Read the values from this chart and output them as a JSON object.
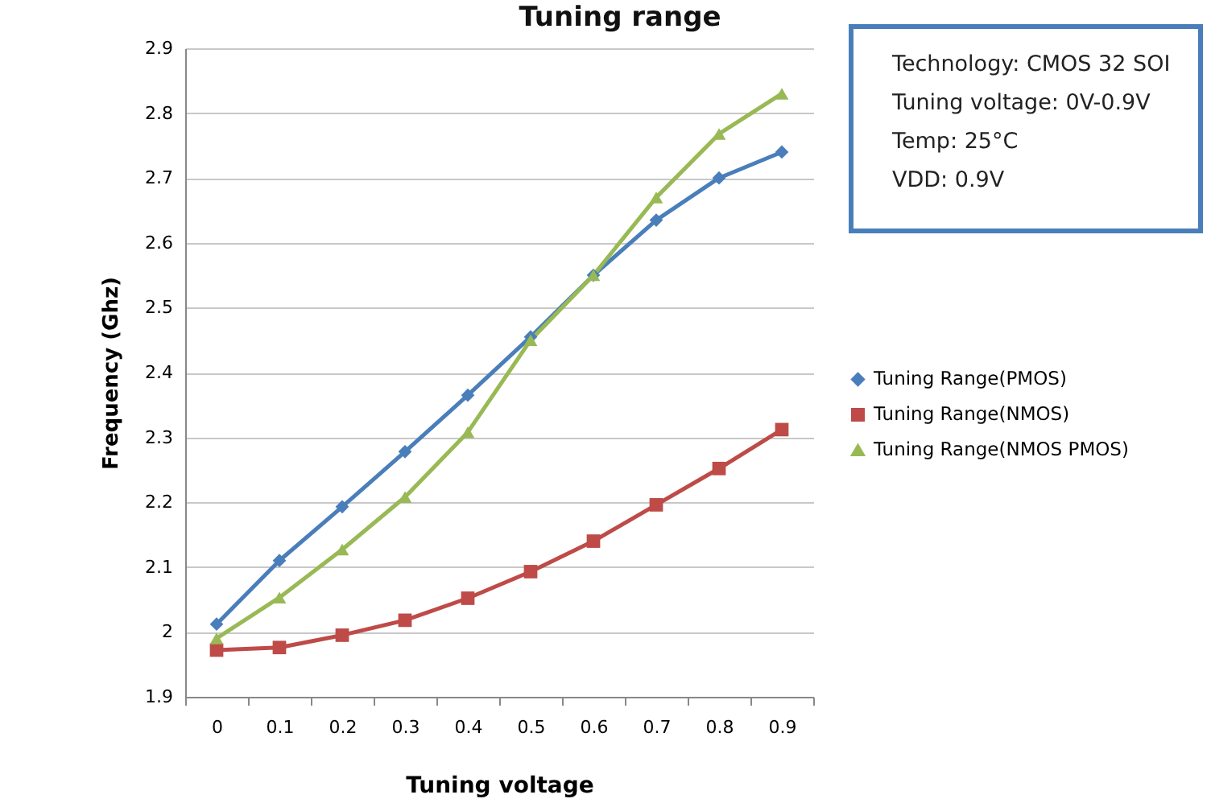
{
  "chart_data": {
    "type": "line",
    "title": "Tuning range",
    "xlabel": "Tuning voltage",
    "ylabel": "Frequency (Ghz)",
    "categories": [
      "0",
      "0.1",
      "0.2",
      "0.3",
      "0.4",
      "0.5",
      "0.6",
      "0.7",
      "0.8",
      "0.9"
    ],
    "series": [
      {
        "name": "Tuning Range(PMOS)",
        "color": "#4a7ebb",
        "marker": "diamond",
        "values": [
          2.012,
          2.11,
          2.193,
          2.278,
          2.365,
          2.455,
          2.55,
          2.635,
          2.7,
          2.74
        ]
      },
      {
        "name": "Tuning Range(NMOS)",
        "color": "#be4b48",
        "marker": "square",
        "values": [
          1.972,
          1.976,
          1.995,
          2.018,
          2.052,
          2.093,
          2.14,
          2.196,
          2.252,
          2.312
        ]
      },
      {
        "name": "Tuning Range(NMOS PMOS)",
        "color": "#98b954",
        "marker": "triangle",
        "values": [
          1.99,
          2.053,
          2.127,
          2.208,
          2.308,
          2.45,
          2.55,
          2.67,
          2.768,
          2.83
        ]
      }
    ],
    "ylim": [
      1.9,
      2.9
    ],
    "yticks": [
      1.9,
      2,
      2.1,
      2.2,
      2.3,
      2.4,
      2.5,
      2.6,
      2.7,
      2.8,
      2.9
    ],
    "grid": "y",
    "legend": "right",
    "annotations": [
      "Technology: CMOS 32 SOI",
      "Tuning voltage: 0V-0.9V",
      "Temp: 25°C",
      "VDD: 0.9V"
    ]
  }
}
